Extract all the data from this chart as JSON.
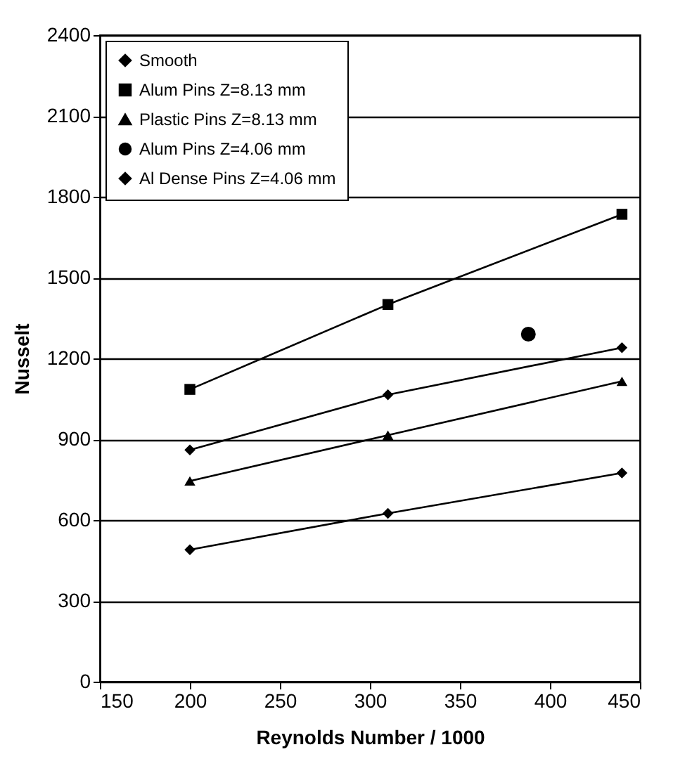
{
  "chart_data": {
    "type": "line",
    "xlabel": "Reynolds Number / 1000",
    "ylabel": "Nusselt",
    "x": [
      200,
      310,
      440
    ],
    "xlim": [
      150,
      450
    ],
    "xticks": [
      150,
      200,
      250,
      300,
      350,
      400,
      450
    ],
    "ylim": [
      0,
      2400
    ],
    "yticks": [
      0,
      300,
      600,
      900,
      1200,
      1500,
      1800,
      2100,
      2400
    ],
    "grid": "y",
    "legend": "top left",
    "series": [
      {
        "name": "Smooth",
        "color": "#000000",
        "marker": "diamond",
        "values": [
          490,
          625,
          775
        ]
      },
      {
        "name": "Alum Pins Z=8.13 mm",
        "color": "#000000",
        "marker": "square",
        "values": [
          1085,
          1400,
          1735
        ]
      },
      {
        "name": "Plastic Pins Z=8.13 mm",
        "color": "#000000",
        "marker": "triangle",
        "values": [
          745,
          915,
          1115
        ]
      },
      {
        "name": "Alum Pins Z=4.06 mm",
        "type": "scatter",
        "color": "#000000",
        "marker": "circle",
        "x": [
          388
        ],
        "values": [
          1290
        ]
      },
      {
        "name": "Al Dense Pins Z=4.06 mm",
        "color": "#000000",
        "marker": "diamond",
        "values": [
          860,
          1065,
          1240
        ]
      }
    ]
  }
}
